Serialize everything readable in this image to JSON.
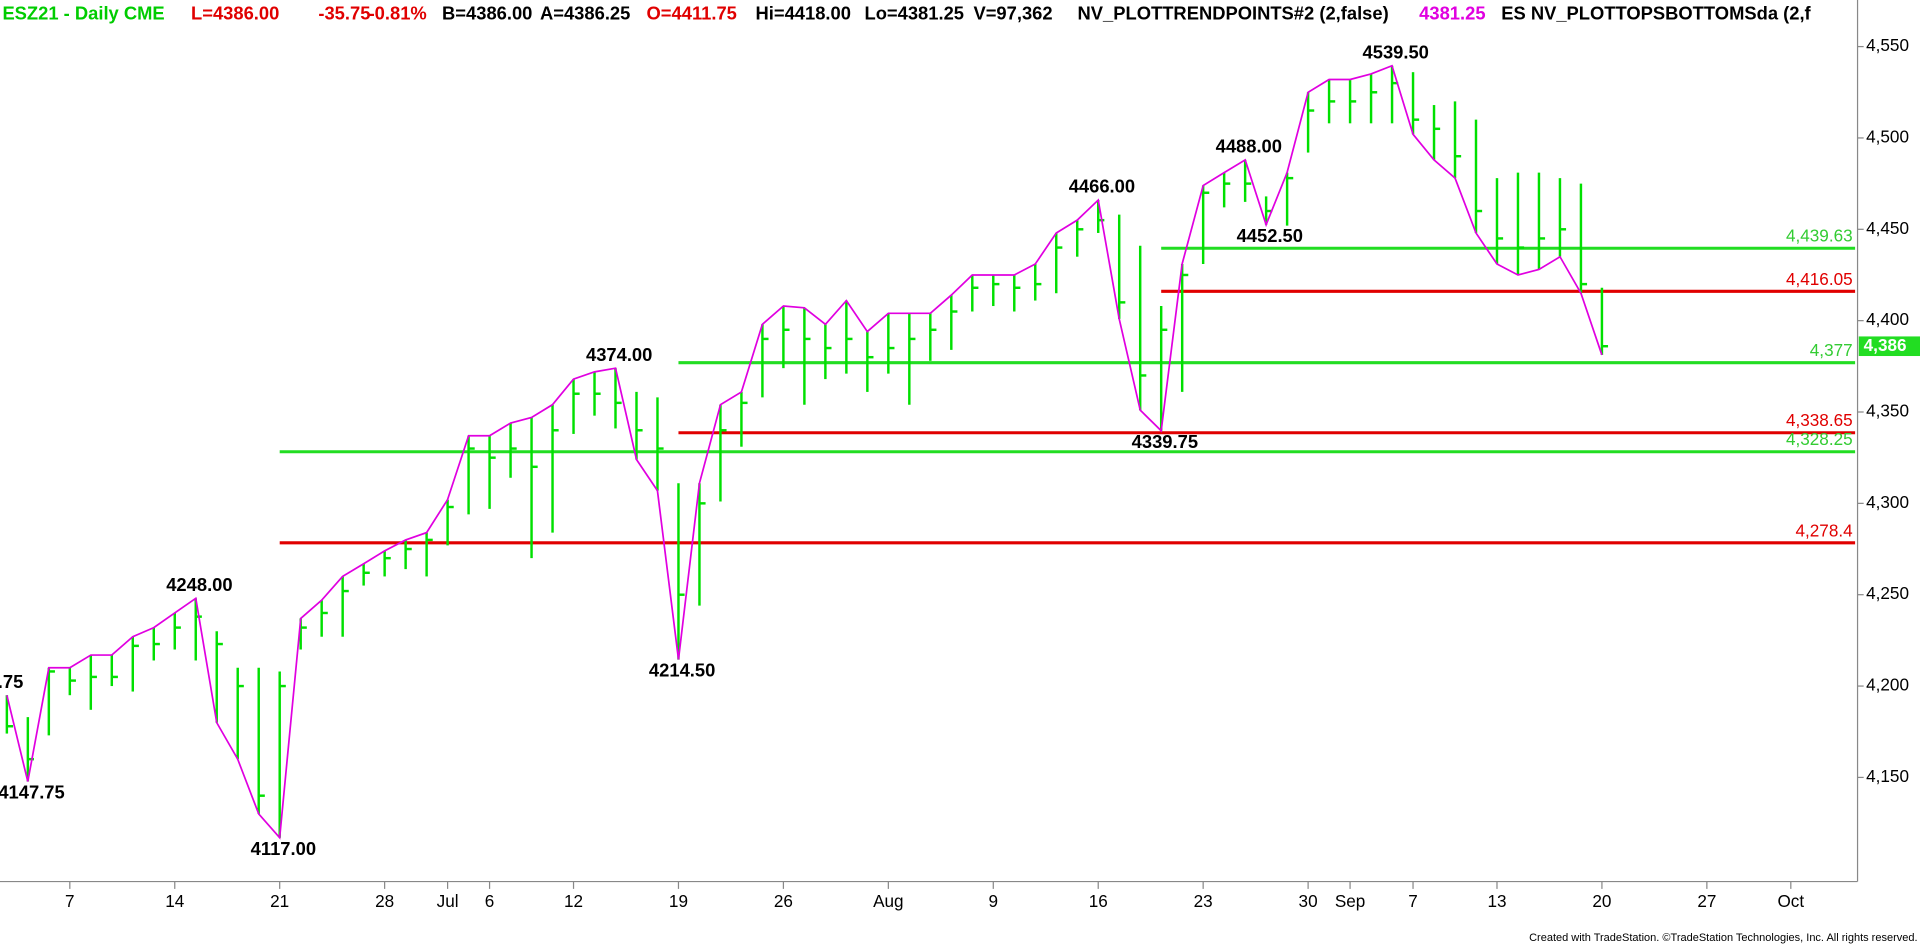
{
  "chart_data": {
    "type": "ohlc",
    "header": [
      {
        "text": "ESZ21 - Daily  CME",
        "color": "#00cc00"
      },
      {
        "text": "L=4386.00",
        "color": "#e00000"
      },
      {
        "text": "-35.75",
        "color": "#e00000"
      },
      {
        "text": "-0.81%",
        "color": "#e00000"
      },
      {
        "text": "B=4386.00",
        "color": "#000000"
      },
      {
        "text": "A=4386.25",
        "color": "#000000"
      },
      {
        "text": "O=4411.75",
        "color": "#e00000"
      },
      {
        "text": "Hi=4418.00",
        "color": "#000000"
      },
      {
        "text": "Lo=4381.25",
        "color": "#000000"
      },
      {
        "text": "V=97,362",
        "color": "#000000"
      },
      {
        "text": "NV_PLOTTRENDPOINTS#2 (2,false)",
        "color": "#000000"
      },
      {
        "text": "4381.25",
        "color": "#e000e0"
      },
      {
        "text": "ES NV_PLOTTOPSBOTTOMSda (2,f",
        "color": "#000000"
      }
    ],
    "categories": [
      null,
      null,
      null,
      "7",
      null,
      null,
      null,
      null,
      "14",
      null,
      null,
      null,
      null,
      "21",
      null,
      null,
      null,
      null,
      "28",
      null,
      null,
      "Jul",
      null,
      "6",
      null,
      null,
      null,
      "12",
      null,
      null,
      null,
      null,
      "19",
      null,
      null,
      null,
      null,
      "26",
      null,
      null,
      null,
      null,
      "Aug",
      null,
      null,
      null,
      null,
      "9",
      null,
      null,
      null,
      null,
      "16",
      null,
      null,
      null,
      null,
      "23",
      null,
      null,
      null,
      null,
      "30",
      null,
      "Sep",
      null,
      null,
      "7",
      null,
      null,
      null,
      "13",
      null,
      null,
      null,
      null,
      "20",
      null,
      null,
      null,
      null,
      "27",
      null,
      null,
      null,
      "Oct",
      null,
      null
    ],
    "high": [
      4195,
      4183,
      4210,
      4210,
      4217,
      4217,
      4227,
      4232,
      4240,
      4248,
      4230,
      4210,
      4210,
      4208,
      4237,
      4247,
      4260,
      4267,
      4274,
      4280,
      4284,
      4302,
      4337,
      4337,
      4344,
      4347,
      4354,
      4368,
      4372,
      4374,
      4361,
      4358,
      4311,
      4311,
      4354,
      4361,
      4398,
      4408,
      4407,
      4398,
      4411,
      4394,
      4404,
      4404,
      4404,
      4414,
      4425,
      4425,
      4425,
      4431,
      4448,
      4455,
      4466,
      4458,
      4441,
      4408,
      4431,
      4474,
      4481,
      4488,
      4468,
      4481,
      4525,
      4532,
      4532,
      4535,
      4539.5,
      4536,
      4518,
      4520,
      4510,
      4478,
      4481,
      4481,
      4478,
      4475,
      4418,
      null,
      null,
      null,
      null,
      null,
      null,
      null,
      null,
      null,
      null,
      null
    ],
    "low": [
      4174,
      4147.75,
      4173,
      4195,
      4187,
      4200,
      4197,
      4214,
      4220,
      4214,
      4180,
      4160,
      4130,
      4117,
      4220,
      4227,
      4227,
      4255,
      4260,
      4264,
      4260,
      4277,
      4294,
      4297,
      4314,
      4270,
      4284,
      4338,
      4348,
      4341,
      4324,
      4307,
      4214.5,
      4244,
      4301,
      4331,
      4358,
      4374,
      4354,
      4368,
      4371,
      4361,
      4371,
      4354,
      4378,
      4384,
      4405,
      4408,
      4405,
      4411,
      4415,
      4435,
      4448,
      4401,
      4351,
      4339.75,
      4361,
      4431,
      4462,
      4465,
      4452.5,
      4452,
      4492,
      4508,
      4508,
      4508,
      4508,
      4502,
      4488,
      4478,
      4448,
      4431,
      4425,
      4428,
      4435,
      4415,
      4381.25,
      null,
      null,
      null,
      null,
      null,
      null,
      null,
      null,
      null,
      null,
      null
    ],
    "close": [
      4178,
      4160,
      4208,
      4203,
      4205,
      4205,
      4222,
      4223,
      4232,
      4238,
      4223,
      4200,
      4140,
      4200,
      4232,
      4240,
      4252,
      4262,
      4270,
      4275,
      4280,
      4298,
      4330,
      4325,
      4330,
      4320,
      4340,
      4360,
      4360,
      4355,
      4340,
      4330,
      4250,
      4300,
      4340,
      4355,
      4390,
      4395,
      4390,
      4385,
      4390,
      4380,
      4385,
      4390,
      4395,
      4405,
      4418,
      4420,
      4418,
      4420,
      4440,
      4450,
      4455,
      4410,
      4370,
      4395,
      4425,
      4470,
      4475,
      4475,
      4460,
      4478,
      4515,
      4520,
      4520,
      4525,
      4530,
      4510,
      4505,
      4490,
      4460,
      4445,
      4440,
      4445,
      4450,
      4420,
      4386,
      null,
      null,
      null,
      null,
      null,
      null,
      null,
      null,
      null,
      null,
      null
    ],
    "pivots": [
      {
        "at": "high",
        "label": ".75"
      },
      {
        "at": "low",
        "label": "4147.75"
      },
      null,
      null,
      null,
      null,
      null,
      null,
      null,
      {
        "at": "high",
        "label": "4248.00"
      },
      null,
      null,
      null,
      {
        "at": "low",
        "label": "4117.00"
      },
      null,
      null,
      null,
      null,
      null,
      null,
      null,
      null,
      null,
      null,
      null,
      null,
      null,
      null,
      null,
      {
        "at": "high",
        "label": "4374.00"
      },
      null,
      null,
      {
        "at": "low",
        "label": "4214.50"
      },
      null,
      null,
      null,
      null,
      null,
      null,
      null,
      null,
      null,
      null,
      null,
      null,
      null,
      null,
      null,
      null,
      null,
      null,
      null,
      {
        "at": "high",
        "label": "4466.00"
      },
      null,
      null,
      {
        "at": "low",
        "label": "4339.75"
      },
      null,
      null,
      null,
      {
        "at": "high",
        "label": "4488.00"
      },
      {
        "at": "low",
        "label": "4452.50"
      },
      null,
      null,
      null,
      null,
      null,
      {
        "at": "high",
        "label": "4539.50"
      },
      null,
      null,
      null,
      null,
      null,
      null,
      null,
      null,
      null,
      {
        "at": "low"
      },
      null,
      null,
      null,
      null,
      null,
      null,
      null,
      null,
      null,
      null,
      null
    ],
    "bar_color": "#00e000",
    "trend_color": "#e000e0",
    "levels": [
      {
        "value": 4439.63,
        "label": "4,439.63",
        "color": "#22dd22",
        "label_color": "#33cc33"
      },
      {
        "value": 4416.05,
        "label": "4,416.05",
        "color": "#e00000",
        "label_color": "#e00000"
      },
      {
        "value": 4377,
        "label": "4,377",
        "color": "#22dd22",
        "label_color": "#33cc33"
      },
      {
        "value": 4338.65,
        "label": "4,338.65",
        "color": "#e00000",
        "label_color": "#e00000"
      },
      {
        "value": 4328.25,
        "label": "4,328.25",
        "color": "#22dd22",
        "label_color": "#33cc33"
      },
      {
        "value": 4278.4,
        "label": "4,278.4",
        "color": "#e00000",
        "label_color": "#e00000"
      }
    ],
    "last": {
      "value": 4386,
      "label": "4,386",
      "color": "#22dd22"
    },
    "ylim": [
      4093,
      4575.5
    ],
    "yticks": [
      {
        "value": 4150,
        "label": "4,150"
      },
      {
        "value": 4200,
        "label": "4,200"
      },
      {
        "value": 4250,
        "label": "4,250"
      },
      {
        "value": 4300,
        "label": "4,300"
      },
      {
        "value": 4350,
        "label": "4,350"
      },
      {
        "value": 4400,
        "label": "4,400"
      },
      {
        "value": 4450,
        "label": "4,450"
      },
      {
        "value": 4500,
        "label": "4,500"
      },
      {
        "value": 4550,
        "label": "4,550"
      }
    ],
    "footer": "Created with TradeStation. ©TradeStation Technologies, Inc. All rights reserved."
  }
}
